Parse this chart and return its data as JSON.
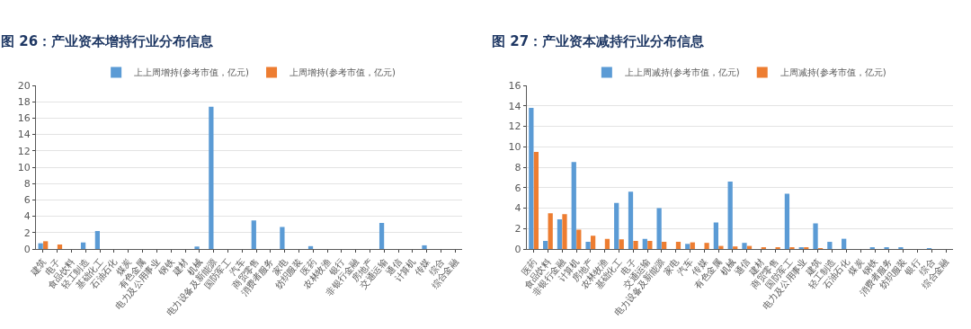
{
  "chart_data": [
    {
      "type": "bar",
      "title": "图 26：产业资本增持行业分布信息",
      "categories": [
        "建筑",
        "电子",
        "食品饮料",
        "轻工制造",
        "基础化工",
        "石油石化",
        "煤炭",
        "有色金属",
        "电力及公用事业",
        "钢铁",
        "建材",
        "机械",
        "电力设备及新能源",
        "国防军工",
        "汽车",
        "商贸零售",
        "消费者服务",
        "家电",
        "纺织服装",
        "医药",
        "农林牧渔",
        "银行",
        "非银行金融",
        "房地产",
        "交通运输",
        "通信",
        "计算机",
        "传媒",
        "综合",
        "综合金融"
      ],
      "series": [
        {
          "name": "上上周增持(参考市值，亿元)",
          "color": "#5b9bd5",
          "values": [
            0.7,
            null,
            null,
            0.8,
            2.2,
            null,
            null,
            null,
            null,
            null,
            null,
            0.3,
            17.4,
            null,
            null,
            3.5,
            null,
            2.7,
            null,
            0.35,
            null,
            null,
            null,
            null,
            3.2,
            null,
            null,
            0.45,
            null,
            null
          ]
        },
        {
          "name": "上周增持(参考市值，亿元)",
          "color": "#ed7d31",
          "values": [
            0.95,
            0.55,
            null,
            null,
            null,
            null,
            null,
            null,
            null,
            null,
            null,
            null,
            null,
            null,
            null,
            null,
            null,
            null,
            null,
            null,
            null,
            null,
            null,
            null,
            null,
            null,
            null,
            null,
            null,
            null
          ]
        }
      ],
      "ylim": [
        0,
        20
      ],
      "yticks": [
        0,
        2,
        4,
        6,
        8,
        10,
        12,
        14,
        16,
        18,
        20
      ],
      "grid": "y",
      "legend": "top"
    },
    {
      "type": "bar",
      "title": "图 27：产业资本减持行业分布信息",
      "categories": [
        "医药",
        "食品饮料",
        "非银行金融",
        "计算机",
        "房地产",
        "农林牧渔",
        "基础化工",
        "电子",
        "交通运输",
        "电力设备及新能源",
        "家电",
        "汽车",
        "传媒",
        "有色金属",
        "机械",
        "通信",
        "建材",
        "商贸零售",
        "国防军工",
        "电力及公用事业",
        "建筑",
        "轻工制造",
        "石油石化",
        "煤炭",
        "钢铁",
        "消费者服务",
        "纺织服装",
        "银行",
        "综合",
        "综合金融"
      ],
      "series": [
        {
          "name": "上上周减持(参考市值，亿元)",
          "color": "#5b9bd5",
          "values": [
            13.8,
            0.8,
            2.9,
            8.5,
            0.7,
            null,
            4.5,
            5.6,
            1.0,
            4.0,
            null,
            0.5,
            null,
            2.6,
            6.6,
            0.6,
            null,
            null,
            5.4,
            0.1,
            2.5,
            0.7,
            1.0,
            null,
            0.15,
            0.1,
            0.1,
            null,
            0.05,
            null
          ]
        },
        {
          "name": "上周减持(参考市值，亿元)",
          "color": "#ed7d31",
          "values": [
            9.5,
            3.5,
            3.4,
            1.9,
            1.3,
            1.0,
            0.95,
            0.8,
            0.8,
            0.7,
            0.7,
            0.65,
            0.6,
            0.3,
            0.25,
            0.3,
            0.15,
            0.1,
            0.1,
            0.1,
            0.05,
            null,
            null,
            null,
            null,
            null,
            null,
            null,
            null,
            null
          ]
        }
      ],
      "ylim": [
        0,
        16
      ],
      "yticks": [
        0,
        2,
        4,
        6,
        8,
        10,
        12,
        14,
        16
      ],
      "grid": "y",
      "legend": "top"
    }
  ]
}
